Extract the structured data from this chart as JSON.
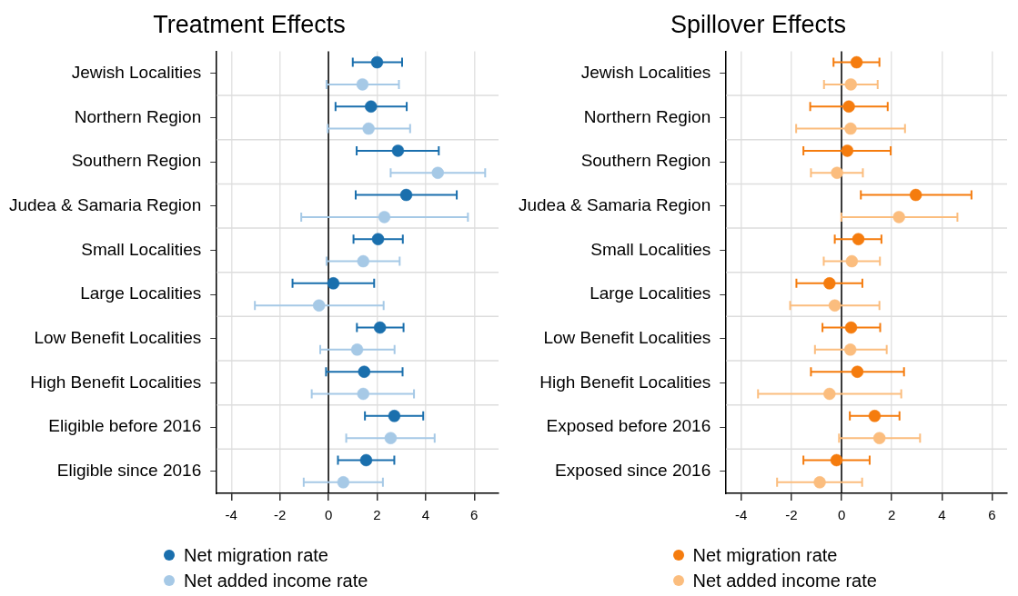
{
  "chart_data": [
    {
      "type": "scatter",
      "title": "Treatment Effects",
      "orientation": "horizontal",
      "marker": "circle",
      "grid": true,
      "legend": "bottom",
      "categories": [
        "Jewish Localities",
        "Northern Region",
        "Southern Region",
        "Judea & Samaria Region",
        "Small Localities",
        "Large Localities",
        "Low Benefit Localities",
        "High Benefit Localities",
        "Eligible before 2016",
        "Eligible since 2016"
      ],
      "xlim": [
        -4.6,
        7
      ],
      "xticks": [
        -4,
        -2,
        0,
        2,
        4,
        6
      ],
      "ref_lines": [
        {
          "axis": "x",
          "value": 0,
          "color": "#000000"
        }
      ],
      "series": [
        {
          "name": "Net migration rate",
          "color": "#1a6fad",
          "values": [
            2.0,
            1.75,
            2.86,
            3.2,
            2.04,
            0.2,
            2.12,
            1.47,
            2.71,
            1.55
          ],
          "errors": [
            [
              1.0,
              3.03
            ],
            [
              0.29,
              3.22
            ],
            [
              1.16,
              4.54
            ],
            [
              1.12,
              5.28
            ],
            [
              1.03,
              3.06
            ],
            [
              -1.48,
              1.88
            ],
            [
              1.17,
              3.09
            ],
            [
              -0.1,
              3.05
            ],
            [
              1.5,
              3.9
            ],
            [
              0.39,
              2.71
            ]
          ]
        },
        {
          "name": "Net added income rate",
          "color": "#a6c9e6",
          "values": [
            1.4,
            1.65,
            4.5,
            2.3,
            1.43,
            -0.39,
            1.18,
            1.43,
            2.56,
            0.61
          ],
          "errors": [
            [
              -0.08,
              2.9
            ],
            [
              -0.03,
              3.36
            ],
            [
              2.56,
              6.45
            ],
            [
              -1.12,
              5.74
            ],
            [
              -0.08,
              2.93
            ],
            [
              -3.03,
              2.27
            ],
            [
              -0.34,
              2.72
            ],
            [
              -0.69,
              3.52
            ],
            [
              0.73,
              4.37
            ],
            [
              -1.02,
              2.24
            ]
          ]
        }
      ]
    },
    {
      "type": "scatter",
      "title": "Spillover Effects",
      "orientation": "horizontal",
      "marker": "circle",
      "grid": true,
      "legend": "bottom",
      "categories": [
        "Jewish Localities",
        "Northern Region",
        "Southern Region",
        "Judea & Samaria Region",
        "Small Localities",
        "Large Localities",
        "Low Benefit Localities",
        "High Benefit Localities",
        "Exposed before 2016",
        "Exposed since 2016"
      ],
      "xlim": [
        -4.6,
        6.6
      ],
      "xticks": [
        -4,
        -2,
        0,
        2,
        4,
        6
      ],
      "ref_lines": [
        {
          "axis": "x",
          "value": 0,
          "color": "#000000"
        }
      ],
      "series": [
        {
          "name": "Net migration rate",
          "color": "#f57c0e",
          "values": [
            0.6,
            0.29,
            0.23,
            2.96,
            0.67,
            -0.48,
            0.38,
            0.63,
            1.32,
            -0.2
          ],
          "errors": [
            [
              -0.32,
              1.51
            ],
            [
              -1.25,
              1.84
            ],
            [
              -1.52,
              1.96
            ],
            [
              0.77,
              5.18
            ],
            [
              -0.27,
              1.59
            ],
            [
              -1.8,
              0.83
            ],
            [
              -0.76,
              1.54
            ],
            [
              -1.22,
              2.49
            ],
            [
              0.33,
              2.31
            ],
            [
              -1.52,
              1.12
            ]
          ]
        },
        {
          "name": "Net added income rate",
          "color": "#fbbd7e",
          "values": [
            0.37,
            0.36,
            -0.18,
            2.29,
            0.41,
            -0.27,
            0.35,
            -0.48,
            1.51,
            -0.87
          ],
          "errors": [
            [
              -0.7,
              1.44
            ],
            [
              -1.81,
              2.53
            ],
            [
              -1.22,
              0.85
            ],
            [
              -0.01,
              4.62
            ],
            [
              -0.71,
              1.53
            ],
            [
              -2.05,
              1.51
            ],
            [
              -1.06,
              1.8
            ],
            [
              -3.33,
              2.38
            ],
            [
              -0.1,
              3.13
            ],
            [
              -2.57,
              0.82
            ]
          ]
        }
      ]
    }
  ]
}
